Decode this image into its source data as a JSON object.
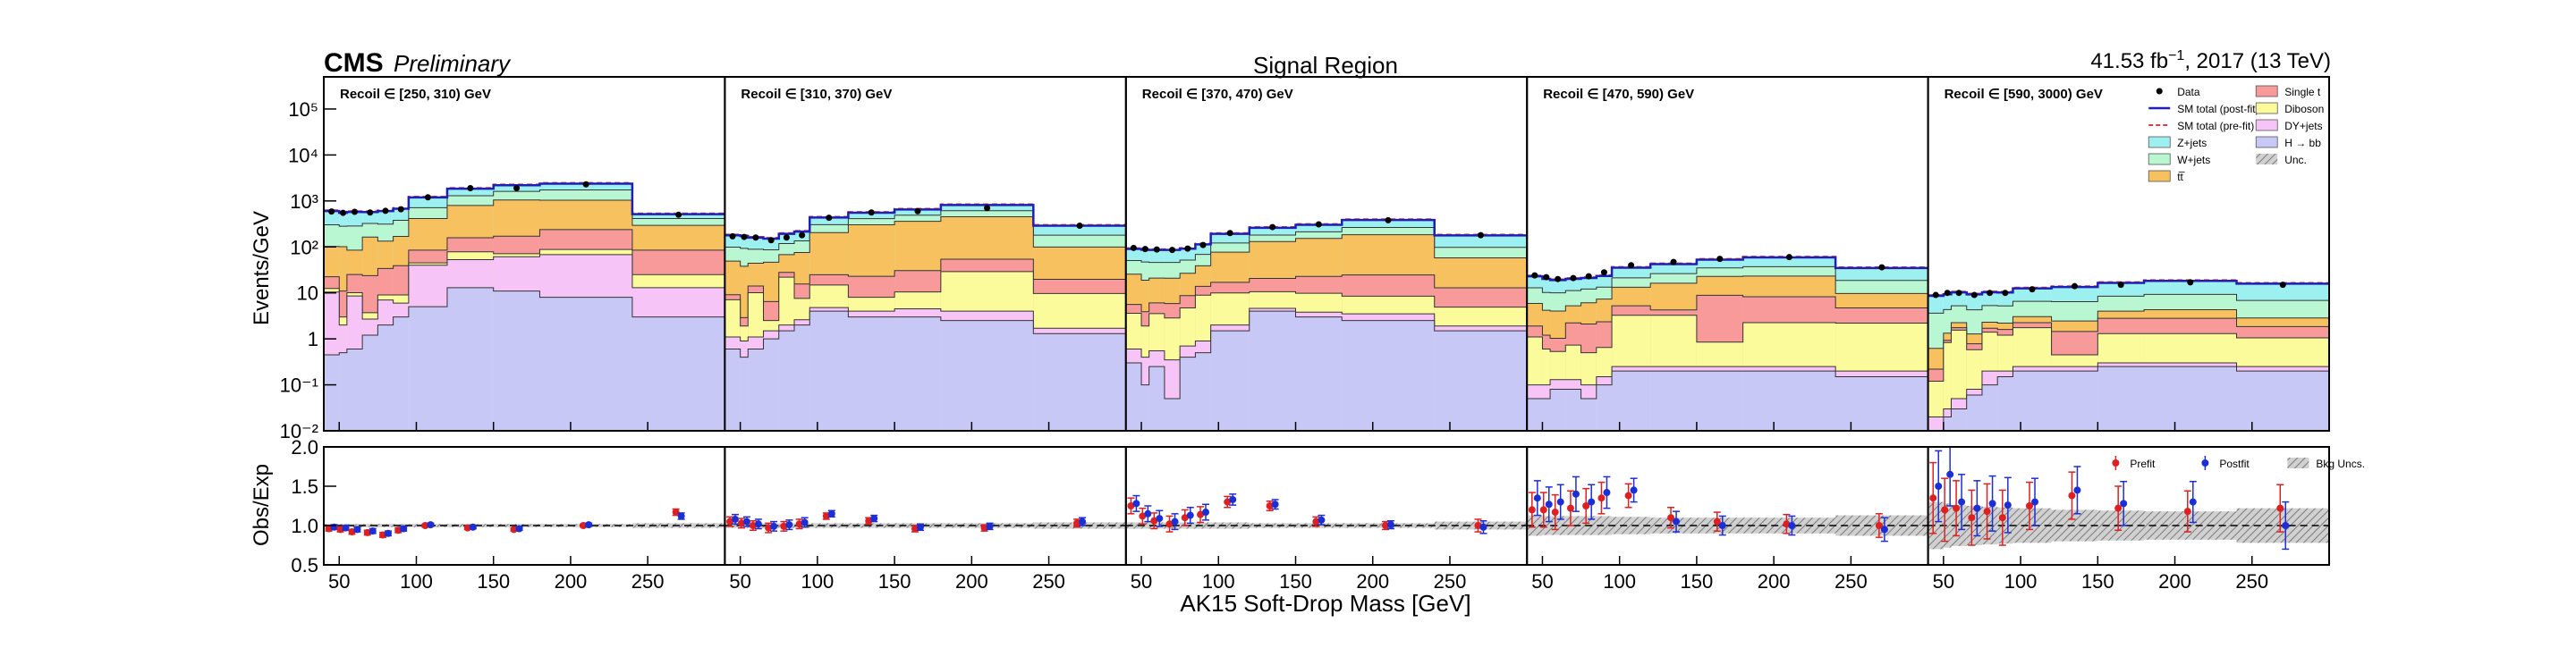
{
  "header": {
    "cms": "CMS",
    "preliminary": "Preliminary",
    "center_title": "Signal Region",
    "lumi_value": "41.53 fb",
    "lumi_exp": "−1",
    "lumi_rest": ", 2017 (13 TeV)"
  },
  "axes": {
    "top_ylabel": "Events/GeV",
    "bottom_ylabel": "Obs/Exp",
    "xlabel": "AK15 Soft-Drop Mass [GeV]"
  },
  "legend_top": [
    {
      "label": "Data",
      "kind": "dot",
      "color": "#000000"
    },
    {
      "label": "SM total (post-fit)",
      "kind": "line",
      "color": "#1f1fb8"
    },
    {
      "label": "SM total (pre-fit)",
      "kind": "dash",
      "color": "#e23b3b"
    },
    {
      "label": "Z+jets",
      "kind": "box",
      "color": "#9df0f0"
    },
    {
      "label": "W+jets",
      "kind": "box",
      "color": "#b8f7d2"
    },
    {
      "label": "tt̅",
      "kind": "box",
      "color": "#f7c160"
    },
    {
      "label": "Single t",
      "kind": "box",
      "color": "#f89a9a"
    },
    {
      "label": "Diboson",
      "kind": "box",
      "color": "#fbfb9c"
    },
    {
      "label": "DY+jets",
      "kind": "box",
      "color": "#f7c4f7"
    },
    {
      "label": "H → bb",
      "kind": "box",
      "color": "#c8c8f6"
    },
    {
      "label": "Unc.",
      "kind": "hatch",
      "color": "#8a8a8a"
    }
  ],
  "legend_bottom": [
    {
      "label": "Prefit",
      "color": "#e02020"
    },
    {
      "label": "Postfit",
      "color": "#1c2fd6"
    },
    {
      "label": "Bkg Uncs.",
      "color": "#8a8a8a"
    }
  ],
  "chart_data": {
    "type": "area",
    "stacked": true,
    "x_edges": [
      40,
      50,
      55,
      65,
      75,
      85,
      95,
      120,
      150,
      180,
      240,
      300
    ],
    "xlim": [
      40,
      300
    ],
    "x_ticks": [
      50,
      100,
      150,
      200,
      250
    ],
    "ylim_top": [
      0.01,
      500000
    ],
    "y_scale_top": "log",
    "y_ticks_top": [
      "10⁻²",
      "10⁻¹",
      "1",
      "10",
      "10²",
      "10³",
      "10⁴",
      "10⁵"
    ],
    "ylim_bottom": [
      0.5,
      2.0
    ],
    "y_ticks_bottom": [
      "0.5",
      "1.0",
      "1.5",
      "2.0"
    ],
    "panels": [
      {
        "label": "Recoil ∈ [250, 310) GeV",
        "series": [
          {
            "name": "H → bb",
            "values": [
              0.45,
              0.5,
              0.6,
              1.2,
              2.0,
              3.0,
              5,
              13,
              11,
              8,
              3
            ]
          },
          {
            "name": "DY+jets",
            "values": [
              10,
              1.5,
              8,
              1.5,
              5,
              3,
              35,
              40,
              50,
              60,
              10
            ]
          },
          {
            "name": "Diboson",
            "values": [
              2,
              1,
              1.5,
              1,
              2,
              3,
              5,
              25,
              10,
              20,
              12
            ]
          },
          {
            "name": "Single t",
            "values": [
              10,
              8,
              15,
              20,
              25,
              30,
              40,
              80,
              100,
              150,
              60
            ]
          },
          {
            "name": "tt̅",
            "values": [
              80,
              90,
              60,
              140,
              100,
              130,
              330,
              640,
              880,
              800,
              210
            ]
          },
          {
            "name": "W+jets",
            "values": [
              200,
              180,
              200,
              160,
              180,
              210,
              300,
              500,
              560,
              700,
              120
            ]
          },
          {
            "name": "Z+jets",
            "values": [
              300,
              270,
              290,
              250,
              290,
              300,
              480,
              550,
              580,
              640,
              100
            ]
          }
        ],
        "data": [
          590,
          550,
          580,
          560,
          610,
          660,
          1200,
          1900,
          1900,
          2300,
          500
        ],
        "ratio_prefit": [
          0.96,
          0.95,
          0.92,
          0.91,
          0.88,
          0.94,
          1.0,
          0.97,
          0.95,
          1.0,
          1.17
        ],
        "ratio_postfit": [
          0.98,
          0.97,
          0.95,
          0.93,
          0.9,
          0.96,
          1.01,
          0.98,
          0.96,
          1.01,
          1.12
        ],
        "ratio_err": [
          0.03,
          0.03,
          0.03,
          0.03,
          0.03,
          0.03,
          0.02,
          0.02,
          0.02,
          0.02,
          0.04
        ],
        "unc_band": [
          0.02,
          0.02,
          0.02,
          0.02,
          0.02,
          0.02,
          0.02,
          0.02,
          0.02,
          0.02,
          0.03
        ]
      },
      {
        "label": "Recoil ∈ [310, 370) GeV",
        "series": [
          {
            "name": "H → bb",
            "values": [
              0.6,
              0.4,
              0.6,
              1.0,
              1.5,
              2,
              4,
              3,
              3,
              2.5,
              1.3
            ]
          },
          {
            "name": "DY+jets",
            "values": [
              0.5,
              0.5,
              0.5,
              0.5,
              0.5,
              0.6,
              0.8,
              1,
              1.5,
              1.5,
              0.4
            ]
          },
          {
            "name": "Diboson",
            "values": [
              6,
              1,
              9,
              1,
              20,
              5,
              10,
              4,
              6,
              25,
              8
            ]
          },
          {
            "name": "Single t",
            "values": [
              2,
              1,
              4,
              4,
              6,
              8,
              10,
              15,
              20,
              25,
              10
            ]
          },
          {
            "name": "tt̅",
            "values": [
              40,
              35,
              30,
              40,
              40,
              60,
              180,
              280,
              330,
              400,
              80
            ]
          },
          {
            "name": "W+jets",
            "values": [
              50,
              55,
              45,
              40,
              50,
              60,
              100,
              110,
              130,
              160,
              80
            ]
          },
          {
            "name": "Z+jets",
            "values": [
              80,
              80,
              70,
              65,
              75,
              80,
              130,
              140,
              160,
              200,
              110
            ]
          }
        ],
        "data": [
          170,
          165,
          160,
          140,
          160,
          180,
          430,
          560,
          600,
          700,
          290
        ],
        "ratio_prefit": [
          1.05,
          1.03,
          1.0,
          0.97,
          0.99,
          1.02,
          1.12,
          1.06,
          0.96,
          0.97,
          1.03
        ],
        "ratio_postfit": [
          1.08,
          1.05,
          1.02,
          0.99,
          1.01,
          1.04,
          1.15,
          1.09,
          0.98,
          0.99,
          1.05
        ],
        "ratio_err": [
          0.06,
          0.06,
          0.06,
          0.06,
          0.06,
          0.06,
          0.04,
          0.04,
          0.04,
          0.04,
          0.05
        ],
        "unc_band": [
          0.03,
          0.03,
          0.03,
          0.03,
          0.03,
          0.03,
          0.03,
          0.03,
          0.03,
          0.03,
          0.04
        ]
      },
      {
        "label": "Recoil ∈ [370, 470) GeV",
        "series": [
          {
            "name": "H → bb",
            "values": [
              0.3,
              0.1,
              0.25,
              0.05,
              0.4,
              0.5,
              1.5,
              4,
              3,
              2.5,
              1.5
            ]
          },
          {
            "name": "DY+jets",
            "values": [
              0.3,
              0.3,
              0.3,
              0.3,
              0.3,
              0.4,
              0.5,
              0.6,
              0.8,
              1,
              0.4
            ]
          },
          {
            "name": "Diboson",
            "values": [
              3,
              1.5,
              3,
              2.5,
              4,
              8,
              8,
              6,
              6,
              5,
              3
            ]
          },
          {
            "name": "Single t",
            "values": [
              2,
              2,
              2.5,
              3,
              4,
              5,
              7,
              10,
              13,
              16,
              8
            ]
          },
          {
            "name": "tt̅",
            "values": [
              20,
              15,
              15,
              15,
              18,
              25,
              60,
              110,
              130,
              160,
              45
            ]
          },
          {
            "name": "W+jets",
            "values": [
              25,
              28,
              25,
              25,
              25,
              30,
              45,
              50,
              60,
              80,
              40
            ]
          },
          {
            "name": "Z+jets",
            "values": [
              40,
              40,
              40,
              40,
              40,
              45,
              70,
              80,
              90,
              120,
              80
            ]
          }
        ],
        "data": [
          95,
          90,
          88,
          86,
          92,
          110,
          200,
          270,
          310,
          380,
          180
        ],
        "ratio_prefit": [
          1.25,
          1.12,
          1.06,
          1.02,
          1.1,
          1.14,
          1.3,
          1.25,
          1.05,
          1.0,
          1.0
        ],
        "ratio_postfit": [
          1.28,
          1.15,
          1.09,
          1.05,
          1.13,
          1.17,
          1.33,
          1.27,
          1.07,
          1.01,
          0.98
        ],
        "ratio_err": [
          0.1,
          0.1,
          0.1,
          0.1,
          0.1,
          0.1,
          0.07,
          0.06,
          0.06,
          0.05,
          0.08
        ],
        "unc_band": [
          0.04,
          0.04,
          0.04,
          0.04,
          0.04,
          0.04,
          0.04,
          0.03,
          0.03,
          0.03,
          0.05
        ]
      },
      {
        "label": "Recoil ∈ [470, 590) GeV",
        "series": [
          {
            "name": "H → bb",
            "values": [
              0.05,
              0.05,
              0.08,
              0.08,
              0.05,
              0.1,
              0.2,
              0.2,
              0.2,
              0.2,
              0.15
            ]
          },
          {
            "name": "DY+jets",
            "values": [
              0.05,
              0.05,
              0.05,
              0.05,
              0.05,
              0.05,
              0.05,
              0.05,
              0.05,
              0.05,
              0.05
            ]
          },
          {
            "name": "Diboson",
            "values": [
              1,
              0.5,
              0.4,
              0.6,
              0.4,
              0.5,
              3,
              3,
              0.6,
              2,
              2
            ]
          },
          {
            "name": "Single t",
            "values": [
              0.8,
              0.6,
              0.5,
              1.5,
              1.6,
              1.7,
              2,
              1,
              8,
              6,
              2.5
            ]
          },
          {
            "name": "tt̅",
            "values": [
              4,
              3,
              3,
              3,
              4,
              5,
              8,
              12,
              14,
              15,
              5
            ]
          },
          {
            "name": "W+jets",
            "values": [
              7,
              6,
              6,
              6,
              6,
              6,
              8,
              10,
              12,
              14,
              9
            ]
          },
          {
            "name": "Z+jets",
            "values": [
              10,
              10,
              9,
              9,
              9,
              10,
              14,
              16,
              18,
              22,
              16
            ]
          }
        ],
        "data": [
          24,
          22,
          20,
          21,
          23,
          28,
          40,
          47,
          55,
          60,
          36
        ],
        "ratio_prefit": [
          1.2,
          1.2,
          1.17,
          1.22,
          1.25,
          1.35,
          1.38,
          1.1,
          1.05,
          1.02,
          1.0
        ],
        "ratio_postfit": [
          1.35,
          1.27,
          1.3,
          1.4,
          1.3,
          1.42,
          1.45,
          1.05,
          1.0,
          1.0,
          0.95
        ],
        "ratio_err": [
          0.22,
          0.22,
          0.22,
          0.22,
          0.22,
          0.2,
          0.15,
          0.13,
          0.12,
          0.12,
          0.15
        ],
        "unc_band": [
          0.13,
          0.12,
          0.12,
          0.12,
          0.12,
          0.12,
          0.11,
          0.1,
          0.1,
          0.1,
          0.13
        ]
      },
      {
        "label": "Recoil ∈ [590, 3000) GeV",
        "series": [
          {
            "name": "H → bb",
            "values": [
              0.01,
              0.02,
              0.03,
              0.06,
              0.1,
              0.15,
              0.2,
              0.2,
              0.25,
              0.25,
              0.2
            ]
          },
          {
            "name": "DY+jets",
            "values": [
              0.01,
              0.01,
              0.02,
              0.02,
              0.1,
              0.05,
              0.05,
              0.05,
              0.05,
              0.05,
              0.05
            ]
          },
          {
            "name": "Diboson",
            "values": [
              0.1,
              0.8,
              1.5,
              0.5,
              1.2,
              1,
              1.5,
              0.2,
              1,
              1,
              0.8
            ]
          },
          {
            "name": "Single t",
            "values": [
              0.1,
              0.1,
              0.2,
              0.2,
              0.3,
              0.4,
              0.5,
              1,
              1.5,
              1.5,
              0.8
            ]
          },
          {
            "name": "tt̅",
            "values": [
              0.4,
              0.4,
              0.5,
              0.5,
              0.6,
              0.6,
              0.8,
              1,
              1.2,
              1.5,
              1
            ]
          },
          {
            "name": "W+jets",
            "values": [
              3,
              3,
              3,
              3,
              3,
              3,
              3.5,
              4,
              4.5,
              5,
              4
            ]
          },
          {
            "name": "Z+jets",
            "values": [
              5,
              5,
              5,
              5,
              5,
              5,
              6,
              7,
              8,
              9,
              9
            ]
          }
        ],
        "data": [
          9,
          10,
          10,
          9,
          10,
          10,
          12,
          14,
          15,
          17,
          15
        ],
        "ratio_prefit": [
          1.35,
          1.2,
          1.22,
          1.1,
          1.18,
          1.1,
          1.25,
          1.38,
          1.22,
          1.18,
          1.22
        ],
        "ratio_postfit": [
          1.5,
          1.65,
          1.3,
          1.22,
          1.28,
          1.26,
          1.3,
          1.45,
          1.28,
          1.3,
          1.0
        ],
        "ratio_err": [
          0.45,
          0.4,
          0.35,
          0.35,
          0.35,
          0.35,
          0.3,
          0.3,
          0.28,
          0.26,
          0.3
        ],
        "unc_band": [
          0.3,
          0.28,
          0.26,
          0.25,
          0.24,
          0.23,
          0.22,
          0.2,
          0.19,
          0.18,
          0.22
        ]
      }
    ]
  },
  "colors": {
    "H → bb": "#c8c8f6",
    "DY+jets": "#f7c4f7",
    "Diboson": "#fbfb9c",
    "Single t": "#f89a9a",
    "tt̅": "#f7c160",
    "W+jets": "#b8f7d2",
    "Z+jets": "#9df0f0",
    "postfit_line": "#1f1fb8",
    "prefit_line": "#e23b3b"
  }
}
